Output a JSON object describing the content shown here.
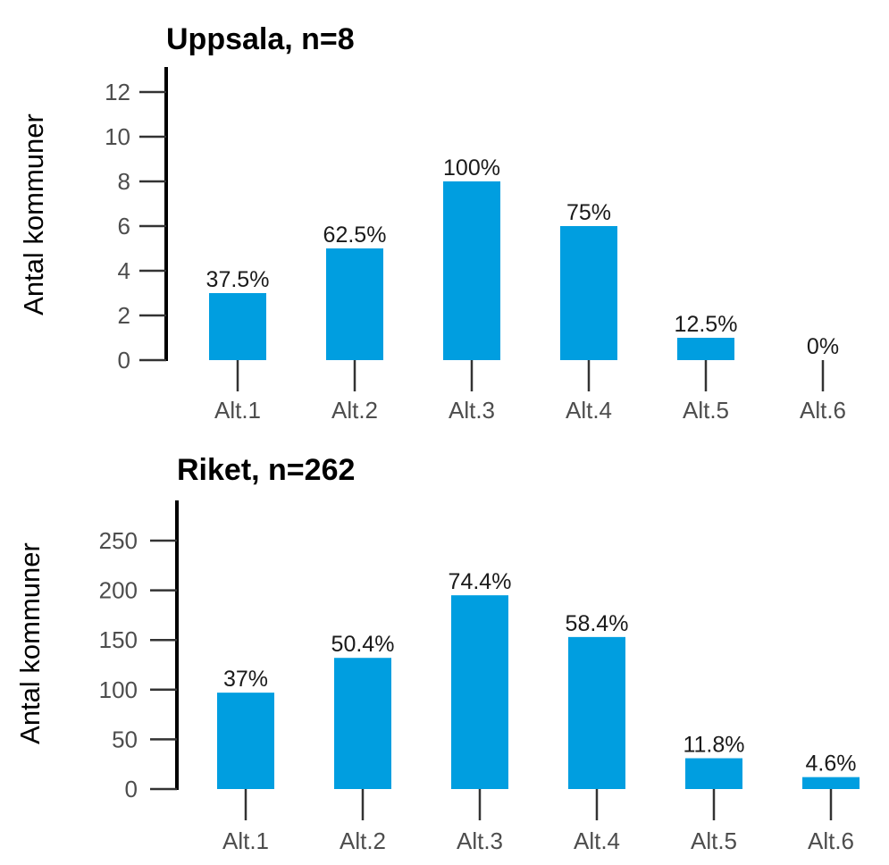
{
  "chart_data": [
    {
      "type": "bar",
      "title": "Uppsala, n=8",
      "ylabel": "Antal kommuner",
      "xlabel": "",
      "categories": [
        "Alt.1",
        "Alt.2",
        "Alt.3",
        "Alt.4",
        "Alt.5",
        "Alt.6"
      ],
      "values": [
        3,
        5,
        8,
        6,
        1,
        0
      ],
      "data_labels": [
        "37.5%",
        "62.5%",
        "100%",
        "75%",
        "12.5%",
        "0%"
      ],
      "yticks": [
        "0",
        "2",
        "4",
        "6",
        "8",
        "10",
        "12"
      ],
      "ylim": [
        0,
        12
      ],
      "grid": false,
      "bar_color": "#009ee0"
    },
    {
      "type": "bar",
      "title": "Riket, n=262",
      "ylabel": "Antal kommuner",
      "xlabel": "",
      "categories": [
        "Alt.1",
        "Alt.2",
        "Alt.3",
        "Alt.4",
        "Alt.5",
        "Alt.6"
      ],
      "values": [
        97,
        132,
        195,
        153,
        31,
        12
      ],
      "data_labels": [
        "37%",
        "50.4%",
        "74.4%",
        "58.4%",
        "11.8%",
        "4.6%"
      ],
      "yticks": [
        "0",
        "50",
        "100",
        "150",
        "200",
        "250"
      ],
      "ylim": [
        0,
        250
      ],
      "grid": false,
      "bar_color": "#009ee0"
    }
  ]
}
